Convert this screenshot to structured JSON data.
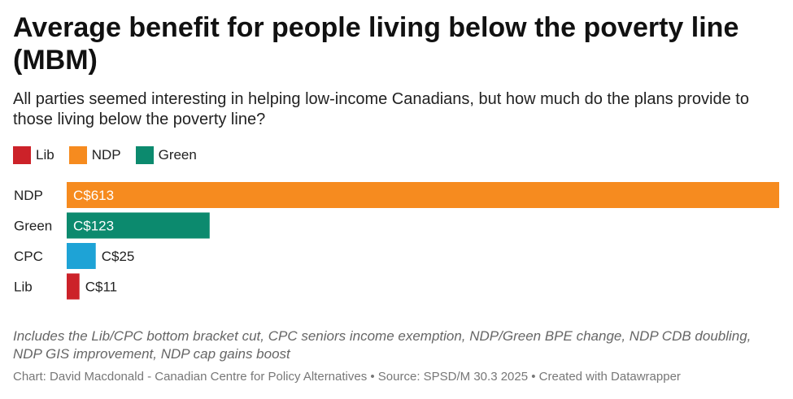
{
  "chart_data": {
    "type": "bar",
    "orientation": "horizontal",
    "title": "Average benefit for people living below the poverty line (MBM)",
    "subtitle": "All parties seemed interesting in helping low-income Canadians, but how much do the plans provide to those living below the poverty line?",
    "legend": [
      {
        "name": "Lib",
        "color": "#cc2229"
      },
      {
        "name": "NDP",
        "color": "#f68b1f"
      },
      {
        "name": "Green",
        "color": "#0c8a6e"
      }
    ],
    "categories": [
      "NDP",
      "Green",
      "CPC",
      "Lib"
    ],
    "values": [
      613,
      123,
      25,
      11
    ],
    "labels": [
      "C$613",
      "C$123",
      "C$25",
      "C$11"
    ],
    "colors": [
      "#f68b1f",
      "#0c8a6e",
      "#1ea3d6",
      "#cc2229"
    ],
    "xlim": [
      0,
      613
    ],
    "note": "Includes the Lib/CPC bottom bracket cut, CPC seniors income exemption, NDP/Green BPE change, NDP CDB doubling, NDP GIS improvement, NDP cap gains boost",
    "credit": "Chart: David Macdonald - Canadian Centre for Policy Alternatives • Source: SPSD/M 30.3 2025 • Created with Datawrapper"
  }
}
